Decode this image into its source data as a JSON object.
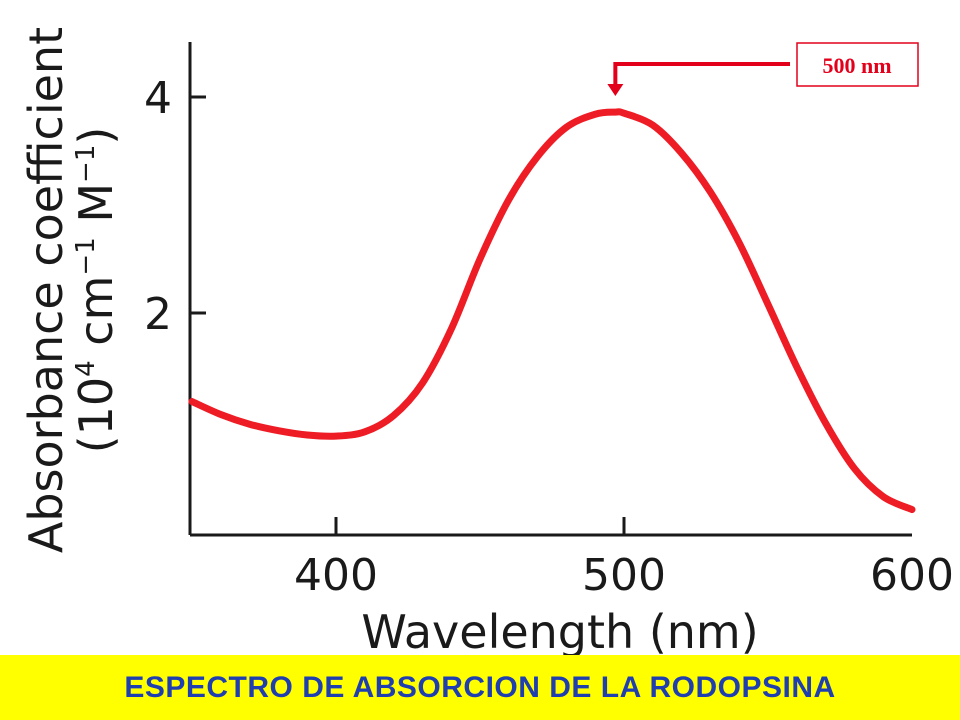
{
  "chart_data": {
    "type": "line",
    "title": "ESPECTRO DE ABSORCION DE LA  RODOPSINA",
    "xlabel": "Wavelength (nm)",
    "ylabel_parts": [
      "(10",
      "4",
      " cm",
      "−1",
      " M",
      "−1",
      ")"
    ],
    "ylabel_line1": "Absorbance coefficient",
    "x_ticks": [
      400,
      500,
      600
    ],
    "y_ticks": [
      2,
      4
    ],
    "xlim": [
      350,
      600
    ],
    "ylim": [
      0,
      4.5
    ],
    "grid": false,
    "series": [
      {
        "color": "#ee1c25",
        "x": [
          350,
          360,
          370,
          380,
          390,
          400,
          410,
          420,
          430,
          440,
          450,
          460,
          470,
          480,
          490,
          497,
          500,
          510,
          520,
          530,
          540,
          550,
          560,
          570,
          580,
          590,
          600
        ],
        "y": [
          1.18,
          1.06,
          0.97,
          0.91,
          0.87,
          0.86,
          0.9,
          1.05,
          1.35,
          1.85,
          2.5,
          3.05,
          3.45,
          3.72,
          3.84,
          3.86,
          3.85,
          3.74,
          3.48,
          3.12,
          2.65,
          2.08,
          1.5,
          0.98,
          0.56,
          0.3,
          0.18
        ]
      }
    ],
    "annotation": {
      "label": "500 nm",
      "x": 497,
      "color": "#e3001b"
    }
  }
}
